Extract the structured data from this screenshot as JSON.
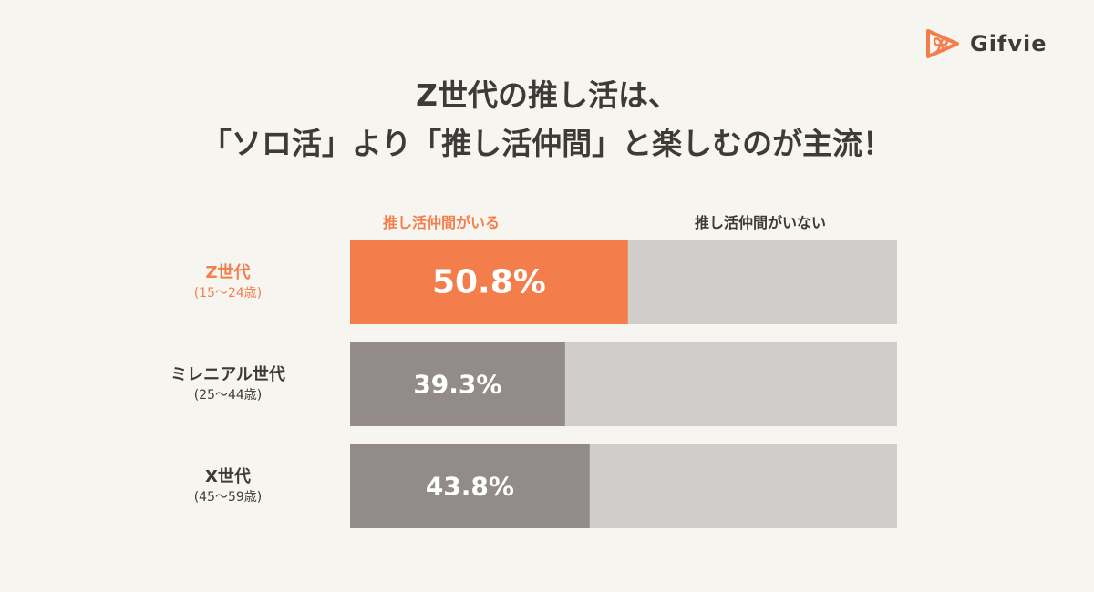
{
  "brand": {
    "name": "Gifvie",
    "accent": "#f47e4b",
    "icon": "gift-play-icon"
  },
  "title": {
    "line1": "Z世代の推し活は、",
    "line2": "「ソロ活」より「推し活仲間」と楽しむのが主流！"
  },
  "chart_data": {
    "type": "bar",
    "orientation": "horizontal-stacked-100",
    "legend": [
      {
        "name": "推し活仲間がいる",
        "color": "#f47e4b"
      },
      {
        "name": "推し活仲間がいない",
        "color": "#3f3a37"
      }
    ],
    "categories": [
      {
        "name": "Z世代",
        "age": "(15〜24歳)",
        "highlight": true
      },
      {
        "name": "ミレニアル世代",
        "age": "(25〜44歳)",
        "highlight": false
      },
      {
        "name": "X世代",
        "age": "(45〜59歳)",
        "highlight": false
      }
    ],
    "series": [
      {
        "name": "推し活仲間がいる",
        "values": [
          50.8,
          39.3,
          43.8
        ],
        "labels": [
          "50.8%",
          "39.3%",
          "43.8%"
        ]
      }
    ],
    "xlim": [
      0,
      100
    ],
    "colors": {
      "highlight": "#f47e4b",
      "normal": "#928b89",
      "remainder": "#d1cdcb",
      "highlight_text": "#f47e4b",
      "normal_text": "#3f3a37"
    }
  }
}
